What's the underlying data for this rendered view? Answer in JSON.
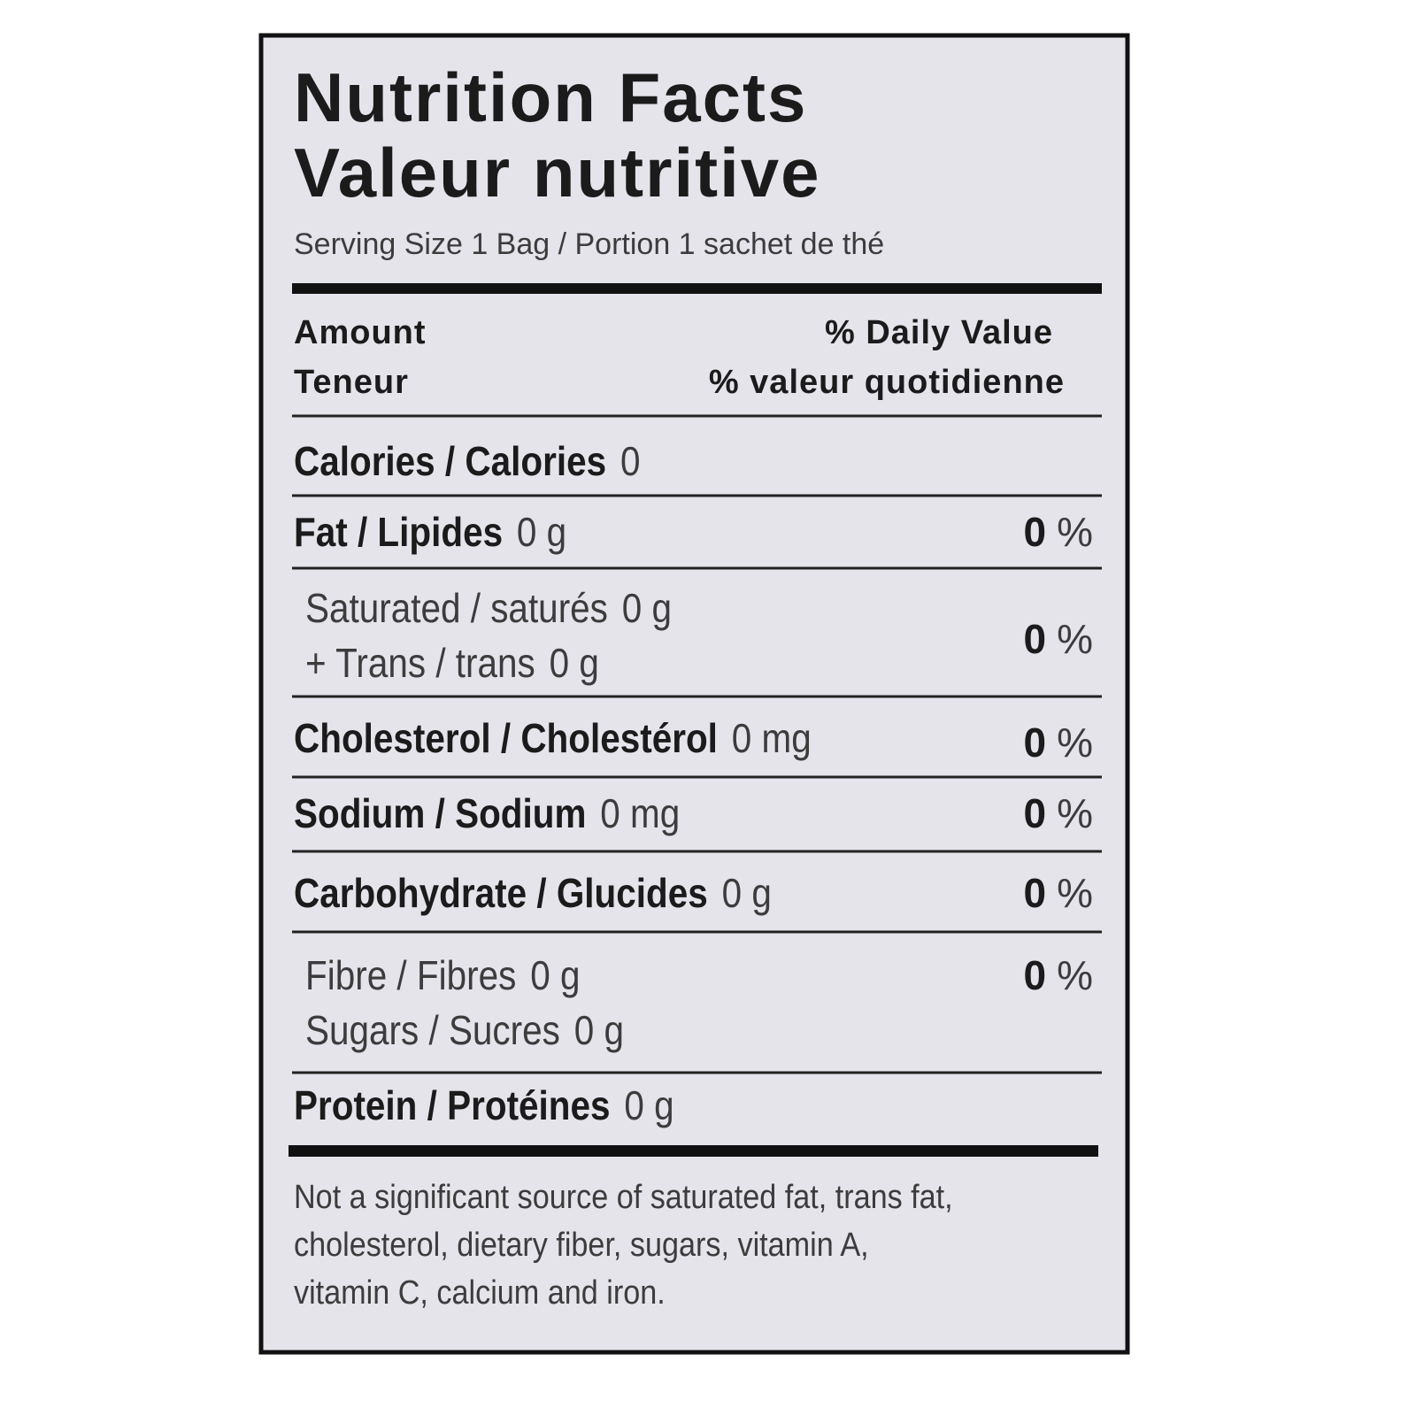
{
  "header": {
    "title": "Nutrition Facts",
    "title_fr": "Valeur nutritive",
    "serving": "Serving Size 1 Bag / Portion 1 sachet de thé"
  },
  "columns": {
    "amount": "Amount",
    "amount_fr": "Teneur",
    "dv": "% Daily Value",
    "dv_fr": "% valeur quotidienne"
  },
  "rows": [
    {
      "label": "Calories / Calories",
      "amount": "0"
    },
    {
      "label": "Fat / Lipides",
      "amount": "0 g",
      "dv": "0",
      "dv_unit": "%"
    },
    {
      "sub": [
        {
          "label": "Saturated / saturés",
          "amount": "0 g"
        },
        {
          "label": "+ Trans / trans",
          "amount": "0 g"
        }
      ],
      "dv": "0",
      "dv_unit": "%"
    },
    {
      "label": "Cholesterol / Cholestérol",
      "amount": "0 mg",
      "dv": "0",
      "dv_unit": "%"
    },
    {
      "label": "Sodium / Sodium",
      "amount": "0 mg",
      "dv": "0",
      "dv_unit": "%"
    },
    {
      "label": "Carbohydrate / Glucides",
      "amount": "0 g",
      "dv": "0",
      "dv_unit": "%"
    },
    {
      "sub": [
        {
          "label": "Fibre / Fibres",
          "amount": "0 g"
        },
        {
          "label": "Sugars / Sucres",
          "amount": "0 g"
        }
      ],
      "dv": "0",
      "dv_unit": "%"
    },
    {
      "label": "Protein / Protéines",
      "amount": "0 g"
    }
  ],
  "footnote": [
    "Not a significant source of saturated fat, trans fat,",
    "cholesterol, dietary fiber, sugars, vitamin A,",
    "vitamin C, calcium and iron."
  ]
}
